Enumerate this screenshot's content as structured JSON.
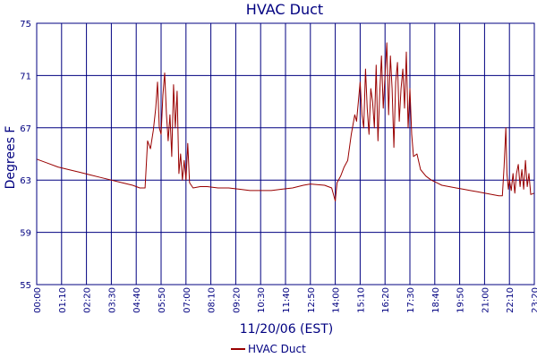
{
  "chart_data": {
    "type": "line",
    "title": "HVAC Duct",
    "xlabel": "11/20/06 (EST)",
    "ylabel": "Degrees F",
    "ylim": [
      55,
      75
    ],
    "yticks": [
      55,
      59,
      63,
      67,
      71,
      75
    ],
    "xlim": [
      "00:00",
      "23:20"
    ],
    "xticks": [
      "00:00",
      "01:10",
      "02:20",
      "03:30",
      "04:40",
      "05:50",
      "07:00",
      "08:10",
      "09:20",
      "10:30",
      "11:40",
      "12:50",
      "14:00",
      "15:10",
      "16:20",
      "17:30",
      "18:40",
      "19:50",
      "21:00",
      "22:10",
      "23:20"
    ],
    "grid": true,
    "legend": "bottom",
    "colors": {
      "line": "#990000",
      "grid": "#000080",
      "text": "#000080"
    },
    "series": [
      {
        "name": "HVAC Duct",
        "points": [
          [
            "00:00",
            64.6
          ],
          [
            "00:30",
            64.3
          ],
          [
            "01:00",
            64.0
          ],
          [
            "01:30",
            63.8
          ],
          [
            "02:00",
            63.6
          ],
          [
            "02:30",
            63.4
          ],
          [
            "03:00",
            63.2
          ],
          [
            "03:30",
            63.0
          ],
          [
            "04:00",
            62.8
          ],
          [
            "04:30",
            62.6
          ],
          [
            "04:50",
            62.4
          ],
          [
            "05:05",
            62.4
          ],
          [
            "05:12",
            66.0
          ],
          [
            "05:20",
            65.4
          ],
          [
            "05:28",
            66.8
          ],
          [
            "05:35",
            68.5
          ],
          [
            "05:40",
            70.5
          ],
          [
            "05:45",
            67.0
          ],
          [
            "05:50",
            66.5
          ],
          [
            "05:55",
            69.5
          ],
          [
            "06:00",
            71.2
          ],
          [
            "06:05",
            68.0
          ],
          [
            "06:10",
            66.0
          ],
          [
            "06:15",
            68.0
          ],
          [
            "06:20",
            64.8
          ],
          [
            "06:25",
            70.3
          ],
          [
            "06:30",
            67.0
          ],
          [
            "06:35",
            69.8
          ],
          [
            "06:40",
            63.5
          ],
          [
            "06:45",
            65.0
          ],
          [
            "06:50",
            63.0
          ],
          [
            "06:55",
            64.5
          ],
          [
            "07:00",
            63.0
          ],
          [
            "07:05",
            65.8
          ],
          [
            "07:10",
            62.8
          ],
          [
            "07:20",
            62.4
          ],
          [
            "07:40",
            62.5
          ],
          [
            "08:00",
            62.5
          ],
          [
            "08:30",
            62.4
          ],
          [
            "09:00",
            62.4
          ],
          [
            "09:30",
            62.3
          ],
          [
            "10:00",
            62.2
          ],
          [
            "10:30",
            62.2
          ],
          [
            "11:00",
            62.2
          ],
          [
            "11:30",
            62.3
          ],
          [
            "12:00",
            62.4
          ],
          [
            "12:30",
            62.6
          ],
          [
            "12:50",
            62.7
          ],
          [
            "13:30",
            62.6
          ],
          [
            "13:50",
            62.4
          ],
          [
            "14:00",
            61.4
          ],
          [
            "14:05",
            62.8
          ],
          [
            "14:15",
            63.3
          ],
          [
            "14:25",
            64.0
          ],
          [
            "14:35",
            64.5
          ],
          [
            "14:45",
            66.5
          ],
          [
            "14:55",
            68.0
          ],
          [
            "15:00",
            67.5
          ],
          [
            "15:05",
            69.0
          ],
          [
            "15:10",
            70.5
          ],
          [
            "15:15",
            68.0
          ],
          [
            "15:20",
            67.0
          ],
          [
            "15:25",
            71.5
          ],
          [
            "15:30",
            68.5
          ],
          [
            "15:35",
            66.5
          ],
          [
            "15:40",
            70.0
          ],
          [
            "15:45",
            69.0
          ],
          [
            "15:50",
            67.0
          ],
          [
            "15:55",
            71.8
          ],
          [
            "16:00",
            66.0
          ],
          [
            "16:05",
            69.5
          ],
          [
            "16:10",
            72.5
          ],
          [
            "16:15",
            68.5
          ],
          [
            "16:20",
            71.0
          ],
          [
            "16:25",
            73.5
          ],
          [
            "16:30",
            68.0
          ],
          [
            "16:35",
            72.5
          ],
          [
            "16:40",
            70.0
          ],
          [
            "16:45",
            65.5
          ],
          [
            "16:50",
            70.5
          ],
          [
            "16:55",
            72.0
          ],
          [
            "17:00",
            67.5
          ],
          [
            "17:05",
            70.0
          ],
          [
            "17:10",
            71.5
          ],
          [
            "17:15",
            68.5
          ],
          [
            "17:20",
            72.8
          ],
          [
            "17:25",
            67.0
          ],
          [
            "17:30",
            70.0
          ],
          [
            "17:35",
            66.5
          ],
          [
            "17:40",
            64.8
          ],
          [
            "17:50",
            65.0
          ],
          [
            "18:00",
            63.8
          ],
          [
            "18:15",
            63.3
          ],
          [
            "18:30",
            63.0
          ],
          [
            "18:45",
            62.8
          ],
          [
            "19:00",
            62.6
          ],
          [
            "19:20",
            62.5
          ],
          [
            "19:40",
            62.4
          ],
          [
            "20:00",
            62.3
          ],
          [
            "20:20",
            62.2
          ],
          [
            "20:40",
            62.1
          ],
          [
            "21:00",
            62.0
          ],
          [
            "21:20",
            61.9
          ],
          [
            "21:40",
            61.8
          ],
          [
            "21:50",
            61.8
          ],
          [
            "21:55",
            64.0
          ],
          [
            "22:00",
            67.0
          ],
          [
            "22:03",
            63.5
          ],
          [
            "22:07",
            62.3
          ],
          [
            "22:10",
            63.0
          ],
          [
            "22:15",
            62.2
          ],
          [
            "22:20",
            63.5
          ],
          [
            "22:25",
            62.0
          ],
          [
            "22:30",
            63.5
          ],
          [
            "22:35",
            64.2
          ],
          [
            "22:40",
            62.5
          ],
          [
            "22:45",
            63.8
          ],
          [
            "22:50",
            62.3
          ],
          [
            "22:55",
            64.5
          ],
          [
            "23:00",
            62.5
          ],
          [
            "23:05",
            63.5
          ],
          [
            "23:10",
            61.9
          ],
          [
            "23:20",
            62.0
          ]
        ]
      }
    ]
  }
}
